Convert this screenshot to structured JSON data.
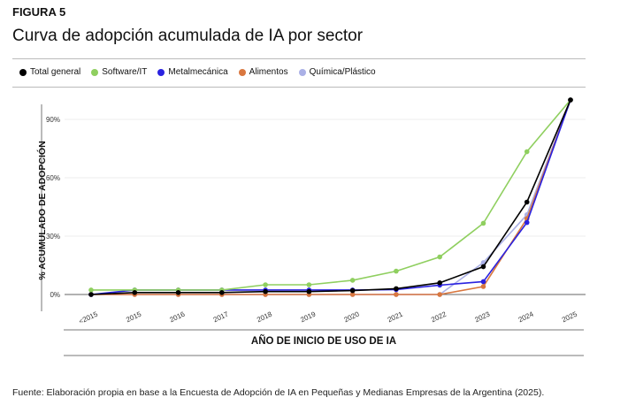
{
  "figure_label": "FIGURA 5",
  "title": "Curva de adopción acumulada de IA por sector",
  "source": "Fuente: Elaboración propia en base a la Encuesta de Adopción de IA en Pequeñas y Medianas Empresas de la Argentina (2025).",
  "chart_data": {
    "type": "line",
    "title": "Curva de adopción acumulada de IA por sector",
    "xlabel": "AÑO DE INICIO DE USO DE IA",
    "ylabel": "% ACUMULADO DE ADOPCIÓN",
    "ylim": [
      0,
      100
    ],
    "yticks": [
      "0%",
      "30%",
      "60%",
      "90%"
    ],
    "ytick_values": [
      0,
      30,
      60,
      90
    ],
    "grid": true,
    "legend_position": "top",
    "categories": [
      "<2015",
      "2015",
      "2016",
      "2017",
      "2018",
      "2019",
      "2020",
      "2021",
      "2022",
      "2023",
      "2024",
      "2025"
    ],
    "series": [
      {
        "name": "Total general",
        "color": "#000000",
        "values": [
          0,
          1,
          1,
          1,
          1.5,
          1.5,
          2,
          3,
          6,
          14.3,
          47.5,
          100
        ]
      },
      {
        "name": "Software/IT",
        "color": "#8fcf5f",
        "values": [
          2.3,
          2.3,
          2.3,
          2.3,
          5,
          5,
          7.3,
          12,
          19.3,
          36.6,
          73.4,
          100
        ]
      },
      {
        "name": "Metalmecánica",
        "color": "#2a22e0",
        "values": [
          0,
          2.3,
          2.3,
          2.3,
          2.3,
          2.3,
          2.3,
          2.5,
          4.8,
          6.6,
          37,
          100
        ]
      },
      {
        "name": "Alimentos",
        "color": "#d9773f",
        "values": [
          0,
          0,
          0,
          0,
          0,
          0,
          0,
          0,
          0,
          4.1,
          39,
          100
        ]
      },
      {
        "name": "Química/Plástico",
        "color": "#aab0e6",
        "values": [
          0,
          0,
          0,
          0,
          0,
          0,
          0,
          0,
          0,
          16.4,
          41,
          100
        ]
      }
    ]
  }
}
